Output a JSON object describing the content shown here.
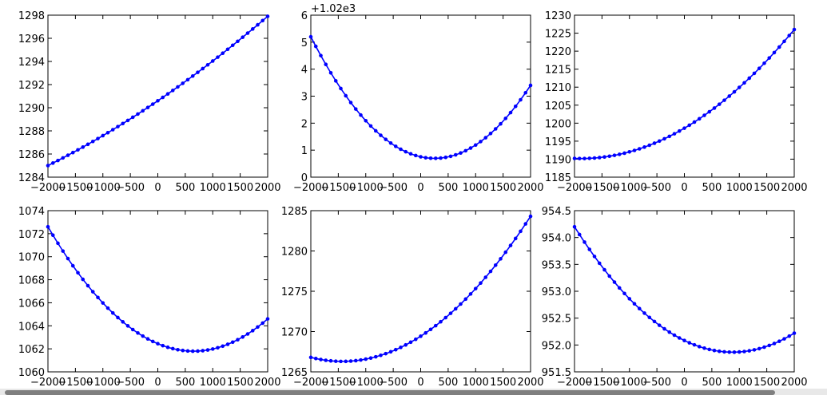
{
  "chart_data": [
    {
      "type": "line",
      "x_range": [
        -2000,
        2000
      ],
      "x_ticks": [
        -2000,
        -1500,
        -1000,
        -500,
        0,
        500,
        1000,
        1500,
        2000
      ],
      "x_tick_labels": [
        "−2000",
        "−1500",
        "−1000",
        "−500",
        "0",
        "500",
        "1000",
        "1500",
        "2000"
      ],
      "y_range": [
        1284,
        1298
      ],
      "y_ticks": [
        1284,
        1286,
        1288,
        1290,
        1292,
        1294,
        1296,
        1298
      ],
      "y_tick_labels": [
        "1284",
        "1286",
        "1288",
        "1290",
        "1292",
        "1294",
        "1296",
        "1298"
      ],
      "offset_label": "",
      "curve": {
        "model": "quadratic",
        "points": [
          [
            -2000,
            1285.0
          ],
          [
            0,
            1290.6
          ],
          [
            2000,
            1297.9
          ]
        ]
      }
    },
    {
      "type": "line",
      "x_range": [
        -2000,
        2000
      ],
      "x_ticks": [
        -2000,
        -1500,
        -1000,
        -500,
        0,
        500,
        1000,
        1500,
        2000
      ],
      "x_tick_labels": [
        "−2000",
        "−1500",
        "−1000",
        "−500",
        "0",
        "500",
        "1000",
        "1500",
        "2000"
      ],
      "y_range": [
        0,
        6
      ],
      "y_ticks": [
        0,
        1,
        2,
        3,
        4,
        5,
        6
      ],
      "y_tick_labels": [
        "0",
        "1",
        "2",
        "3",
        "4",
        "5",
        "6"
      ],
      "offset_label": "+1.02e3",
      "curve": {
        "model": "quadratic",
        "points": [
          [
            -2000,
            5.2
          ],
          [
            500,
            0.75
          ],
          [
            2000,
            3.4
          ]
        ]
      }
    },
    {
      "type": "line",
      "x_range": [
        -2000,
        2000
      ],
      "x_ticks": [
        -2000,
        -1500,
        -1000,
        -500,
        0,
        500,
        1000,
        1500,
        2000
      ],
      "x_tick_labels": [
        "−2000",
        "−1500",
        "−1000",
        "−500",
        "0",
        "500",
        "1000",
        "1500",
        "2000"
      ],
      "y_range": [
        1185,
        1230
      ],
      "y_ticks": [
        1185,
        1190,
        1195,
        1200,
        1205,
        1210,
        1215,
        1220,
        1225,
        1230
      ],
      "y_tick_labels": [
        "1185",
        "1190",
        "1195",
        "1200",
        "1205",
        "1210",
        "1215",
        "1220",
        "1225",
        "1230"
      ],
      "offset_label": "",
      "curve": {
        "model": "quadratic",
        "points": [
          [
            -2000,
            1190.2
          ],
          [
            0,
            1198.6
          ],
          [
            2000,
            1226.0
          ]
        ]
      }
    },
    {
      "type": "line",
      "x_range": [
        -2000,
        2000
      ],
      "x_ticks": [
        -2000,
        -1500,
        -1000,
        -500,
        0,
        500,
        1000,
        1500,
        2000
      ],
      "x_tick_labels": [
        "−2000",
        "−1500",
        "−1000",
        "−500",
        "0",
        "500",
        "1000",
        "1500",
        "2000"
      ],
      "y_range": [
        1060,
        1074
      ],
      "y_ticks": [
        1060,
        1062,
        1064,
        1066,
        1068,
        1070,
        1072,
        1074
      ],
      "y_tick_labels": [
        "1060",
        "1062",
        "1064",
        "1066",
        "1068",
        "1070",
        "1072",
        "1074"
      ],
      "offset_label": "",
      "curve": {
        "model": "quadratic",
        "points": [
          [
            -2000,
            1072.6
          ],
          [
            600,
            1061.8
          ],
          [
            2000,
            1064.6
          ]
        ]
      }
    },
    {
      "type": "line",
      "x_range": [
        -2000,
        2000
      ],
      "x_ticks": [
        -2000,
        -1500,
        -1000,
        -500,
        0,
        500,
        1000,
        1500,
        2000
      ],
      "x_tick_labels": [
        "−2000",
        "−1500",
        "−1000",
        "−500",
        "0",
        "500",
        "1000",
        "1500",
        "2000"
      ],
      "y_range": [
        1265,
        1285
      ],
      "y_ticks": [
        1265,
        1270,
        1275,
        1280,
        1285
      ],
      "y_tick_labels": [
        "1265",
        "1270",
        "1275",
        "1280",
        "1285"
      ],
      "offset_label": "",
      "curve": {
        "model": "quadratic",
        "points": [
          [
            -2000,
            1266.8
          ],
          [
            -1400,
            1266.3
          ],
          [
            2000,
            1284.3
          ]
        ]
      }
    },
    {
      "type": "line",
      "x_range": [
        -2000,
        2000
      ],
      "x_ticks": [
        -2000,
        -1500,
        -1000,
        -500,
        0,
        500,
        1000,
        1500,
        2000
      ],
      "x_tick_labels": [
        "−2000",
        "−1500",
        "−1000",
        "−500",
        "0",
        "500",
        "1000",
        "1500",
        "2000"
      ],
      "y_range": [
        951.5,
        954.5
      ],
      "y_ticks": [
        951.5,
        952.0,
        952.5,
        953.0,
        953.5,
        954.0,
        954.5
      ],
      "y_tick_labels": [
        "951.5",
        "952.0",
        "952.5",
        "953.0",
        "953.5",
        "954.0",
        "954.5"
      ],
      "offset_label": "",
      "curve": {
        "model": "quadratic",
        "points": [
          [
            -2000,
            954.2
          ],
          [
            1100,
            951.88
          ],
          [
            2000,
            952.22
          ]
        ]
      }
    }
  ],
  "style": {
    "line_color": "#0000ff",
    "axes_color": "#000000",
    "background": "#ffffff",
    "markers": "filled-circle",
    "sample_count": 45
  },
  "scrollbar": {
    "present": true
  }
}
